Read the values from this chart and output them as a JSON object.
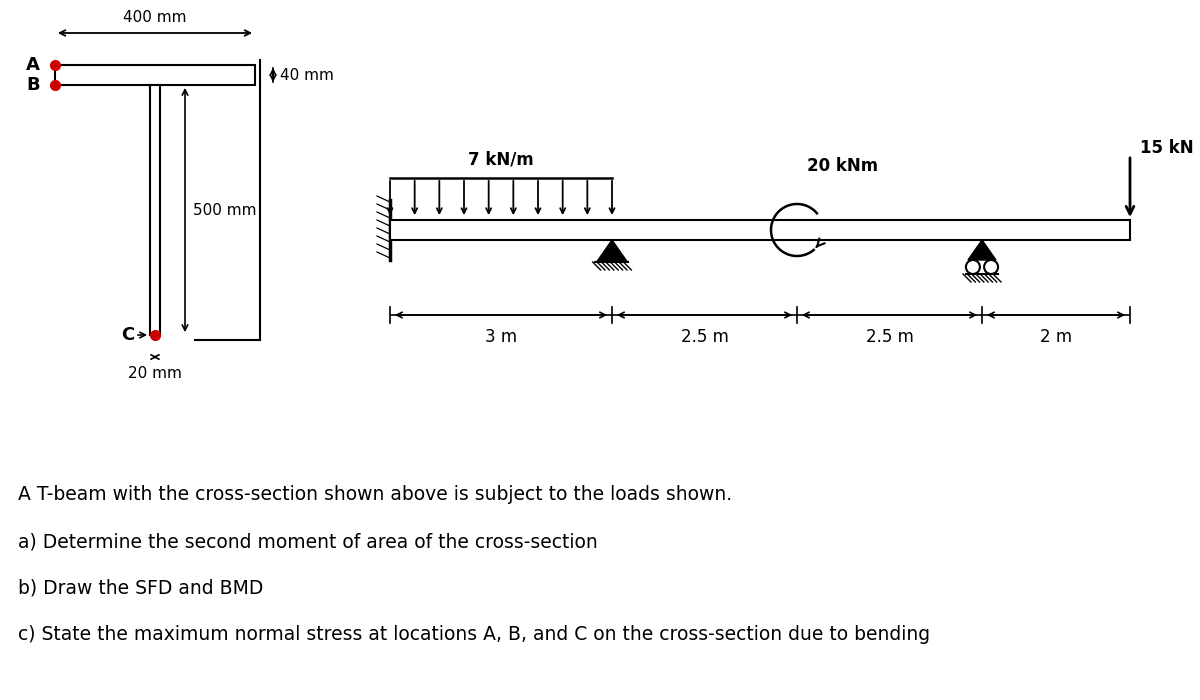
{
  "bg_color": "#ffffff",
  "line_color": "#000000",
  "red_dot_color": "#cc0000",
  "cross_section": {
    "dim_400mm": "400 mm",
    "dim_40mm": "40 mm",
    "dim_500mm": "500 mm",
    "dim_20mm": "20 mm",
    "label_A": "A",
    "label_B": "B",
    "label_C": "C"
  },
  "beam": {
    "udl_label": "7 kN/m",
    "moment_label": "20 kNm",
    "point_load_label": "15 kN",
    "span_labels": [
      "3 m",
      "2.5 m",
      "2.5 m",
      "2 m"
    ],
    "spans": [
      3.0,
      2.5,
      2.5,
      2.0
    ]
  },
  "questions": [
    "A T-beam with the cross-section shown above is subject to the loads shown.",
    "a) Determine the second moment of area of the cross-section",
    "b) Draw the SFD and BMD",
    "c) State the maximum normal stress at locations A, B, and C on the cross-section due to bending"
  ]
}
